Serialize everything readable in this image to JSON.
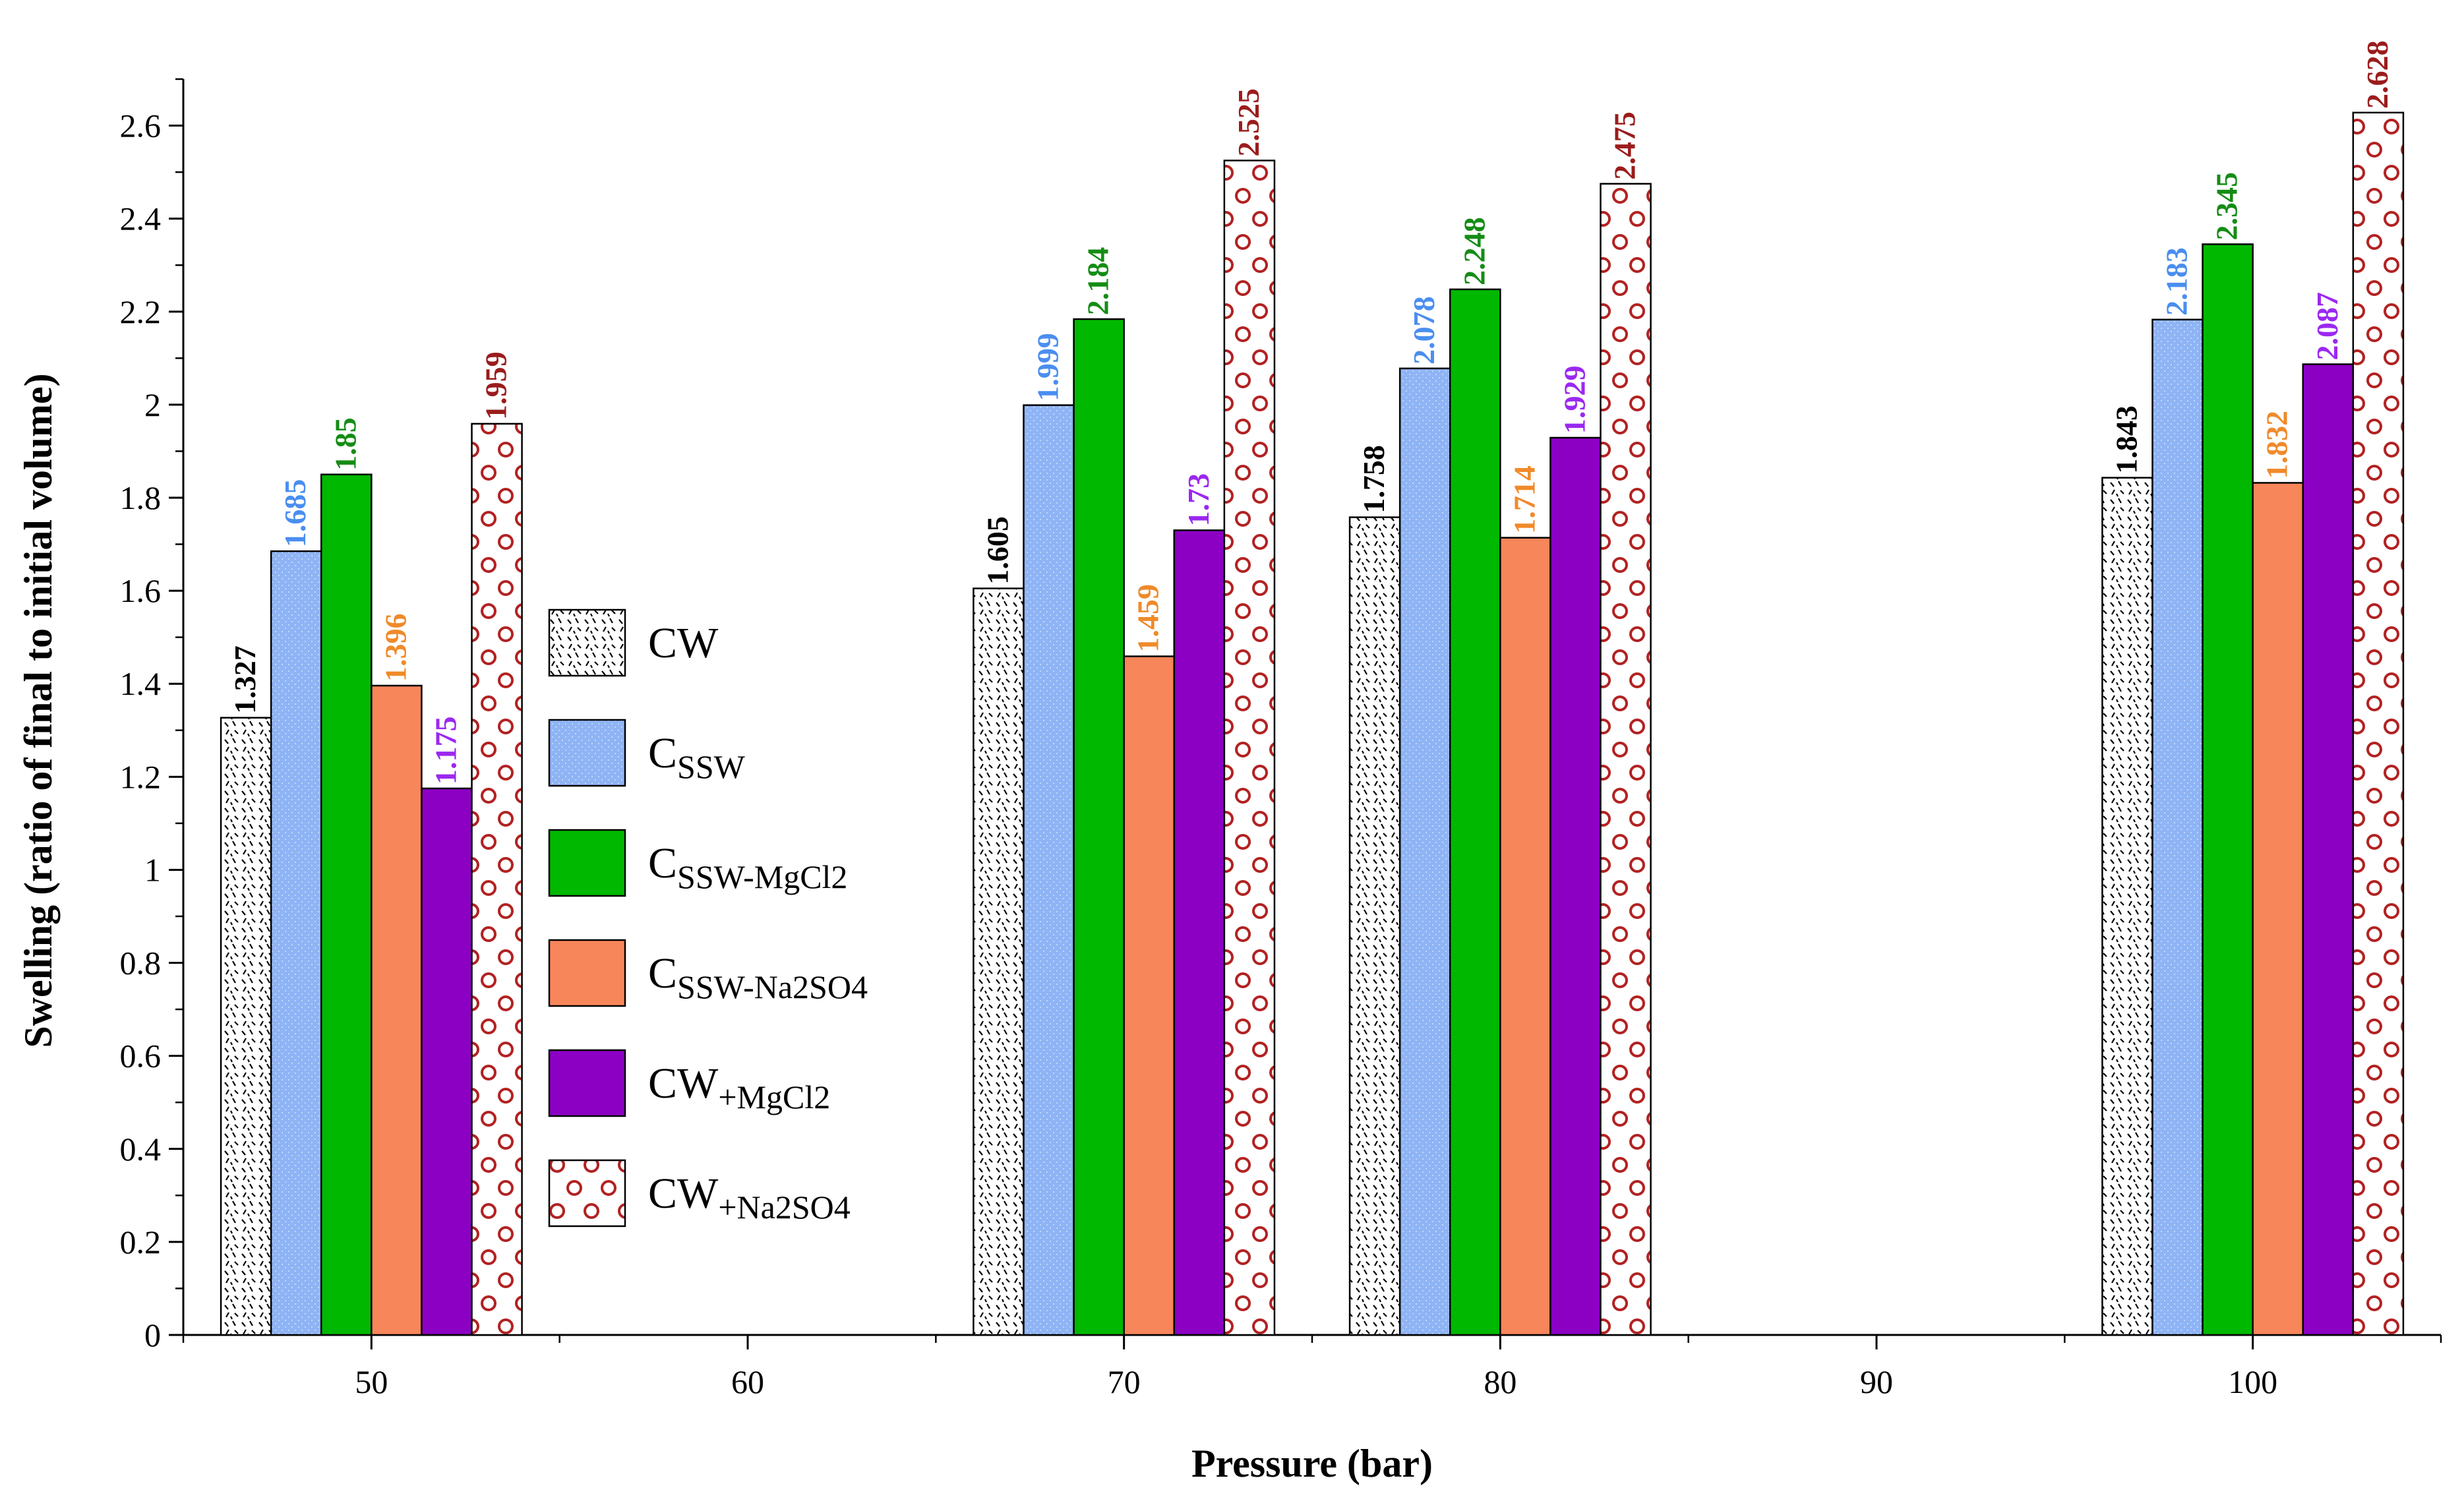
{
  "chart_data": {
    "type": "bar",
    "xlabel": "Pressure (bar)",
    "ylabel": "Swelling (ratio of final to initial volume)",
    "xlim": [
      45,
      105
    ],
    "ylim": [
      0,
      2.7
    ],
    "x_ticks": [
      "50",
      "60",
      "70",
      "80",
      "90",
      "100"
    ],
    "y_ticks": [
      "0",
      "0.2",
      "0.4",
      "0.6",
      "0.8",
      "1",
      "1.2",
      "1.4",
      "1.6",
      "1.8",
      "2",
      "2.2",
      "2.4",
      "2.6"
    ],
    "categories": [
      50,
      70,
      80,
      100
    ],
    "legend_position": "center-left",
    "grid": false,
    "series": [
      {
        "name": "CW",
        "legend_main": "CW",
        "legend_sub": "",
        "fill": "#ffffff",
        "pattern": "dashes",
        "label_color": "#000000",
        "values": [
          1.327,
          1.605,
          1.758,
          1.843
        ],
        "labels": [
          "1.327",
          "1.605",
          "1.758",
          "1.843"
        ]
      },
      {
        "name": "CSSW",
        "legend_main": "C",
        "legend_sub": "SSW",
        "fill": "#8fb4f5",
        "pattern": "dots",
        "label_color": "#4a8ef0",
        "values": [
          1.685,
          1.999,
          2.078,
          2.183
        ],
        "labels": [
          "1.685",
          "1.999",
          "2.078",
          "2.183"
        ]
      },
      {
        "name": "CSSW-MgCl2",
        "legend_main": "C",
        "legend_sub": "SSW-MgCl2",
        "fill": "#00b800",
        "pattern": "none",
        "label_color": "#158c15",
        "values": [
          1.85,
          2.184,
          2.248,
          2.345
        ],
        "labels": [
          "1.85",
          "2.184",
          "2.248",
          "2.345"
        ]
      },
      {
        "name": "CSSW-Na2SO4",
        "legend_main": "C",
        "legend_sub": "SSW-Na2SO4",
        "fill": "#f7865a",
        "pattern": "none",
        "label_color": "#f08a2a",
        "values": [
          1.396,
          1.459,
          1.714,
          1.832
        ],
        "labels": [
          "1.396",
          "1.459",
          "1.714",
          "1.832"
        ]
      },
      {
        "name": "CW+MgCl2",
        "legend_main": "CW",
        "legend_sub": "+MgCl2",
        "fill": "#8c00c4",
        "pattern": "none",
        "label_color": "#9b28f0",
        "values": [
          1.175,
          1.73,
          1.929,
          2.087
        ],
        "labels": [
          "1.175",
          "1.73",
          "1.929",
          "2.087"
        ]
      },
      {
        "name": "CW+Na2SO4",
        "legend_main": "CW",
        "legend_sub": "+Na2SO4",
        "fill": "#ffffff",
        "pattern": "circles",
        "label_color": "#9b1c1c",
        "values": [
          1.959,
          2.525,
          2.475,
          2.628
        ],
        "labels": [
          "1.959",
          "2.525",
          "2.475",
          "2.628"
        ]
      }
    ]
  }
}
